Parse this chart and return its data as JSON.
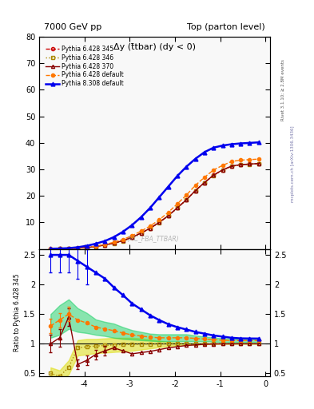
{
  "title_left": "7000 GeV pp",
  "title_right": "Top (parton level)",
  "plot_title": "Δy (t̄tbar) (dy < 0)",
  "ylabel_ratio": "Ratio to Pythia 6.428 345",
  "right_label_top": "Rivet 3.1.10; ≥ 2.8M events",
  "right_label_bottom": "mcplots.cern.ch [arXiv:1306.3436]",
  "watermark": "(MC_FBA_TTBAR)",
  "xlim": [
    -5.0,
    0.1
  ],
  "ylim_main": [
    0,
    80
  ],
  "ylim_ratio": [
    0.45,
    2.6
  ],
  "yticks_main": [
    10,
    20,
    30,
    40,
    50,
    60,
    70,
    80
  ],
  "yticks_ratio": [
    0.5,
    1.0,
    1.5,
    2.0,
    2.5
  ],
  "xticks": [
    -4,
    -3,
    -2,
    -1,
    0
  ],
  "x_values": [
    -4.75,
    -4.55,
    -4.35,
    -4.15,
    -3.95,
    -3.75,
    -3.55,
    -3.35,
    -3.15,
    -2.95,
    -2.75,
    -2.55,
    -2.35,
    -2.15,
    -1.95,
    -1.75,
    -1.55,
    -1.35,
    -1.15,
    -0.95,
    -0.75,
    -0.55,
    -0.35,
    -0.15
  ],
  "py6_345_y": [
    0.05,
    0.08,
    0.15,
    0.3,
    0.55,
    0.95,
    1.5,
    2.2,
    3.1,
    4.4,
    6.0,
    7.8,
    10.0,
    12.5,
    15.5,
    18.5,
    22.0,
    25.0,
    27.8,
    29.8,
    31.2,
    31.8,
    32.0,
    32.2
  ],
  "py6_346_y": [
    0.04,
    0.07,
    0.13,
    0.28,
    0.5,
    0.9,
    1.45,
    2.15,
    3.05,
    4.35,
    5.95,
    7.75,
    9.95,
    12.45,
    15.45,
    18.45,
    21.95,
    24.95,
    27.75,
    29.75,
    31.15,
    31.75,
    31.95,
    32.15
  ],
  "py6_370_y": [
    0.05,
    0.09,
    0.16,
    0.32,
    0.56,
    0.96,
    1.52,
    2.22,
    3.12,
    4.42,
    6.02,
    7.82,
    10.02,
    12.52,
    15.52,
    18.52,
    22.02,
    25.02,
    27.82,
    29.82,
    31.22,
    31.82,
    32.02,
    32.22
  ],
  "py6_def_y": [
    0.07,
    0.11,
    0.18,
    0.38,
    0.65,
    1.1,
    1.7,
    2.55,
    3.6,
    5.0,
    6.75,
    8.65,
    11.0,
    13.8,
    17.0,
    20.3,
    24.0,
    27.0,
    29.8,
    31.5,
    33.0,
    33.5,
    33.7,
    33.9
  ],
  "py8_def_y": [
    0.1,
    0.18,
    0.32,
    0.65,
    1.2,
    2.0,
    3.0,
    4.5,
    6.5,
    9.0,
    12.0,
    15.5,
    19.5,
    23.5,
    27.5,
    31.0,
    34.0,
    36.5,
    38.2,
    39.0,
    39.5,
    39.8,
    40.0,
    40.2
  ],
  "ratio_py6_346": [
    0.5,
    0.45,
    0.6,
    0.93,
    0.95,
    0.96,
    0.97,
    0.98,
    0.985,
    0.989,
    0.992,
    0.994,
    0.996,
    0.997,
    0.998,
    0.999,
    0.999,
    1.0,
    1.0,
    1.0,
    1.0,
    1.0,
    1.0,
    1.0
  ],
  "ratio_py6_370": [
    1.0,
    1.1,
    1.45,
    0.65,
    0.72,
    0.82,
    0.88,
    0.93,
    0.88,
    0.83,
    0.85,
    0.87,
    0.9,
    0.93,
    0.95,
    0.97,
    0.98,
    0.99,
    0.995,
    0.998,
    0.998,
    0.999,
    0.999,
    0.999
  ],
  "ratio_py6_def": [
    1.3,
    1.4,
    1.5,
    1.4,
    1.35,
    1.28,
    1.25,
    1.22,
    1.18,
    1.15,
    1.13,
    1.11,
    1.1,
    1.1,
    1.1,
    1.1,
    1.09,
    1.08,
    1.07,
    1.057,
    1.055,
    1.053,
    1.053,
    1.053
  ],
  "ratio_py8_def": [
    2.5,
    2.5,
    2.5,
    2.4,
    2.3,
    2.2,
    2.1,
    1.95,
    1.82,
    1.68,
    1.58,
    1.48,
    1.4,
    1.33,
    1.28,
    1.24,
    1.2,
    1.17,
    1.14,
    1.12,
    1.1,
    1.09,
    1.088,
    1.087
  ],
  "band_346_lo": [
    0.4,
    0.38,
    0.48,
    0.8,
    0.82,
    0.84,
    0.85,
    0.86,
    0.87,
    0.88,
    0.9,
    0.92,
    0.94,
    0.96,
    0.97,
    0.98,
    0.985,
    0.99,
    0.995,
    0.997,
    0.998,
    0.998,
    0.998,
    0.998
  ],
  "band_346_hi": [
    0.6,
    0.55,
    0.72,
    1.06,
    1.08,
    1.08,
    1.09,
    1.1,
    1.1,
    1.1,
    1.09,
    1.07,
    1.05,
    1.03,
    1.02,
    1.01,
    1.01,
    1.01,
    1.005,
    1.003,
    1.002,
    1.002,
    1.002,
    1.002
  ],
  "band_def_lo": [
    1.1,
    1.15,
    1.25,
    1.2,
    1.18,
    1.15,
    1.13,
    1.1,
    1.08,
    1.07,
    1.06,
    1.05,
    1.04,
    1.04,
    1.04,
    1.04,
    1.04,
    1.04,
    1.035,
    1.025,
    1.024,
    1.023,
    1.023,
    1.023
  ],
  "band_def_hi": [
    1.5,
    1.65,
    1.75,
    1.6,
    1.52,
    1.41,
    1.37,
    1.34,
    1.28,
    1.23,
    1.2,
    1.17,
    1.16,
    1.16,
    1.16,
    1.16,
    1.14,
    1.12,
    1.105,
    1.089,
    1.086,
    1.083,
    1.083,
    1.083
  ],
  "color_py6_345": "#cc0000",
  "color_py6_346": "#aa8800",
  "color_py6_370": "#880000",
  "color_py6_def": "#ff7700",
  "color_py8_def": "#0000ee",
  "band_346_color": "#dddd00",
  "band_346_alpha": 0.5,
  "band_def_color": "#00cc55",
  "band_def_alpha": 0.45,
  "bg_color": "#f8f8f8"
}
